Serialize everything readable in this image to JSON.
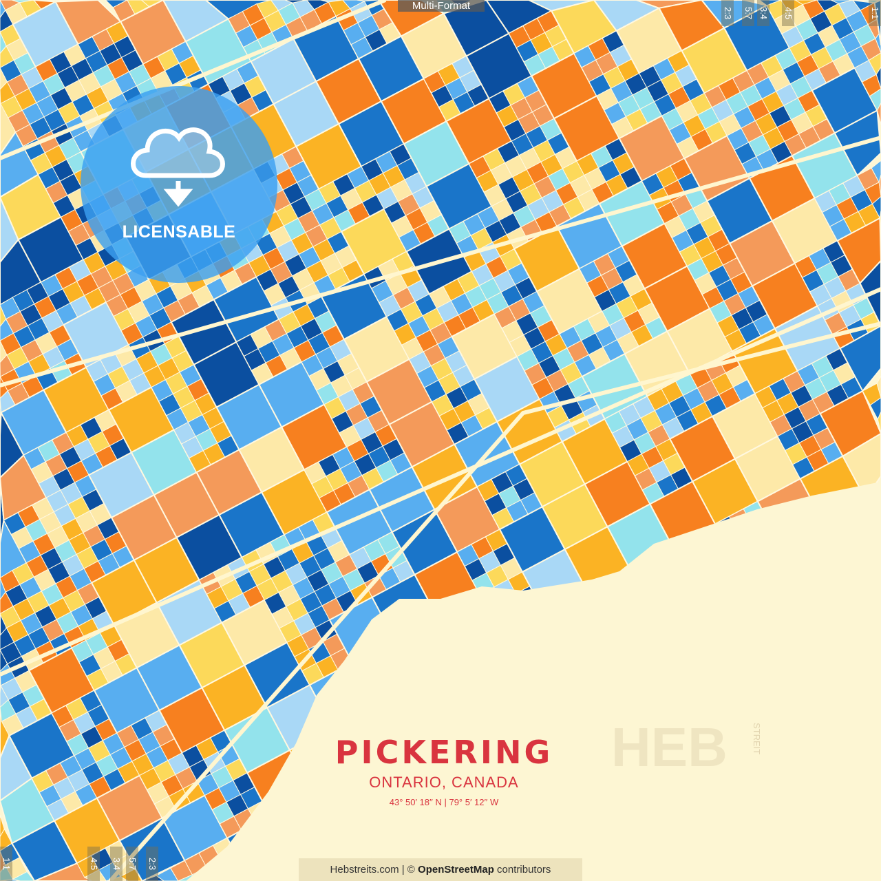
{
  "top_tab": "Multi-Format",
  "ratio_labels_top": [
    "2:3",
    "5:7",
    "3:4",
    "4:5",
    "1:1"
  ],
  "ratio_labels_bottom": [
    "1:1",
    "4:5",
    "3:4",
    "5:7",
    "2:3"
  ],
  "badge": {
    "icon": "cloud-download-icon",
    "label": "LICENSABLE"
  },
  "title": "PICKERING",
  "subtitle": "ONTARIO, CANADA",
  "coordinates": "43°  50′  18′′ N  |  79°  5′  12′′ W",
  "credit": {
    "site": "Hebstreits.com | © ",
    "osm": "OpenStreetMap",
    "suffix": " contributors"
  },
  "watermark": "HEB",
  "watermark_side": "STREIT",
  "colors": {
    "water": "#fdf6d3",
    "title": "#d9343f",
    "badge": "#3ca0f0",
    "palette": [
      "#f7801f",
      "#fbb324",
      "#fcd95a",
      "#fde9a8",
      "#93e3ec",
      "#a9d8f6",
      "#58aef0",
      "#1a75c9",
      "#0b4fa0",
      "#f49a5a"
    ]
  }
}
